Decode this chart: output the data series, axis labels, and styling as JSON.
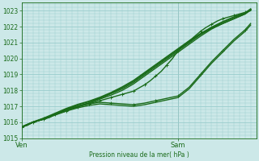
{
  "bg_color": "#cce8e8",
  "grid_color": "#99cccc",
  "line_color": "#1a6b1a",
  "ylabel": "Pression niveau de la mer( hPa )",
  "ylim": [
    1015.0,
    1023.5
  ],
  "yticks": [
    1015,
    1016,
    1017,
    1018,
    1019,
    1020,
    1021,
    1022,
    1023
  ],
  "xlim": [
    0,
    42
  ],
  "x_ven": 0,
  "x_sam": 28,
  "lines": [
    {
      "x": [
        0,
        1,
        2,
        3,
        4,
        5,
        6,
        7,
        8,
        9,
        10,
        11,
        12,
        13,
        14,
        15,
        16,
        17,
        18,
        19,
        20,
        21,
        22,
        23,
        24,
        25,
        26,
        27,
        28,
        29,
        30,
        31,
        32,
        33,
        34,
        35,
        36,
        37,
        38,
        39,
        40,
        41
      ],
      "y": [
        1015.7,
        1015.8,
        1016.0,
        1016.1,
        1016.2,
        1016.3,
        1016.5,
        1016.6,
        1016.7,
        1016.85,
        1016.95,
        1017.05,
        1017.15,
        1017.25,
        1017.35,
        1017.45,
        1017.55,
        1017.65,
        1017.75,
        1017.85,
        1017.95,
        1018.15,
        1018.35,
        1018.6,
        1018.9,
        1019.2,
        1019.6,
        1020.0,
        1020.5,
        1020.8,
        1021.1,
        1021.4,
        1021.7,
        1021.95,
        1022.15,
        1022.35,
        1022.5,
        1022.6,
        1022.7,
        1022.8,
        1022.9,
        1023.0
      ],
      "marker": true,
      "lw": 1.0,
      "marker_every": 2
    },
    {
      "x": [
        0,
        2,
        4,
        6,
        8,
        10,
        12,
        14,
        16,
        18,
        20,
        22,
        24,
        26,
        28,
        30,
        32,
        34,
        36,
        38,
        40,
        41
      ],
      "y": [
        1015.7,
        1016.0,
        1016.2,
        1016.5,
        1016.8,
        1017.0,
        1017.2,
        1017.5,
        1017.8,
        1018.1,
        1018.5,
        1019.0,
        1019.5,
        1020.0,
        1020.5,
        1021.0,
        1021.5,
        1021.9,
        1022.2,
        1022.5,
        1022.8,
        1023.05
      ],
      "marker": false,
      "lw": 1.2
    },
    {
      "x": [
        0,
        2,
        4,
        6,
        8,
        10,
        12,
        14,
        16,
        18,
        20,
        22,
        24,
        26,
        28,
        30,
        32,
        34,
        36,
        38,
        40,
        41
      ],
      "y": [
        1015.7,
        1016.0,
        1016.25,
        1016.55,
        1016.85,
        1017.1,
        1017.3,
        1017.55,
        1017.85,
        1018.2,
        1018.6,
        1019.1,
        1019.6,
        1020.1,
        1020.6,
        1021.1,
        1021.55,
        1021.95,
        1022.3,
        1022.6,
        1022.85,
        1023.1
      ],
      "marker": false,
      "lw": 1.5
    },
    {
      "x": [
        0,
        2,
        4,
        6,
        8,
        10,
        12,
        14,
        16,
        18,
        20,
        22,
        24,
        26,
        28,
        30,
        32,
        34,
        36,
        38,
        40,
        41
      ],
      "y": [
        1015.7,
        1016.0,
        1016.2,
        1016.5,
        1016.8,
        1017.0,
        1017.2,
        1017.45,
        1017.7,
        1018.0,
        1018.4,
        1018.9,
        1019.4,
        1019.9,
        1020.4,
        1020.9,
        1021.4,
        1021.85,
        1022.2,
        1022.5,
        1022.8,
        1023.05
      ],
      "marker": false,
      "lw": 1.0
    },
    {
      "x": [
        0,
        2,
        4,
        6,
        8,
        10,
        12,
        14,
        16,
        18,
        20,
        22,
        24,
        26,
        28,
        30,
        32,
        34,
        36,
        38,
        40,
        41
      ],
      "y": [
        1015.7,
        1016.0,
        1016.25,
        1016.5,
        1016.75,
        1017.0,
        1017.15,
        1017.25,
        1017.2,
        1017.15,
        1017.1,
        1017.2,
        1017.35,
        1017.5,
        1017.65,
        1018.2,
        1019.0,
        1019.8,
        1020.5,
        1021.2,
        1021.8,
        1022.2
      ],
      "marker": true,
      "lw": 1.0,
      "marker_every": 2
    },
    {
      "x": [
        0,
        2,
        4,
        6,
        8,
        10,
        12,
        14,
        16,
        18,
        20,
        22,
        24,
        26,
        28,
        30,
        32,
        34,
        36,
        38,
        40,
        41
      ],
      "y": [
        1015.7,
        1016.0,
        1016.2,
        1016.45,
        1016.7,
        1016.9,
        1017.05,
        1017.15,
        1017.1,
        1017.05,
        1017.0,
        1017.1,
        1017.25,
        1017.4,
        1017.55,
        1018.1,
        1018.9,
        1019.7,
        1020.4,
        1021.1,
        1021.7,
        1022.1
      ],
      "marker": false,
      "lw": 1.0
    }
  ]
}
